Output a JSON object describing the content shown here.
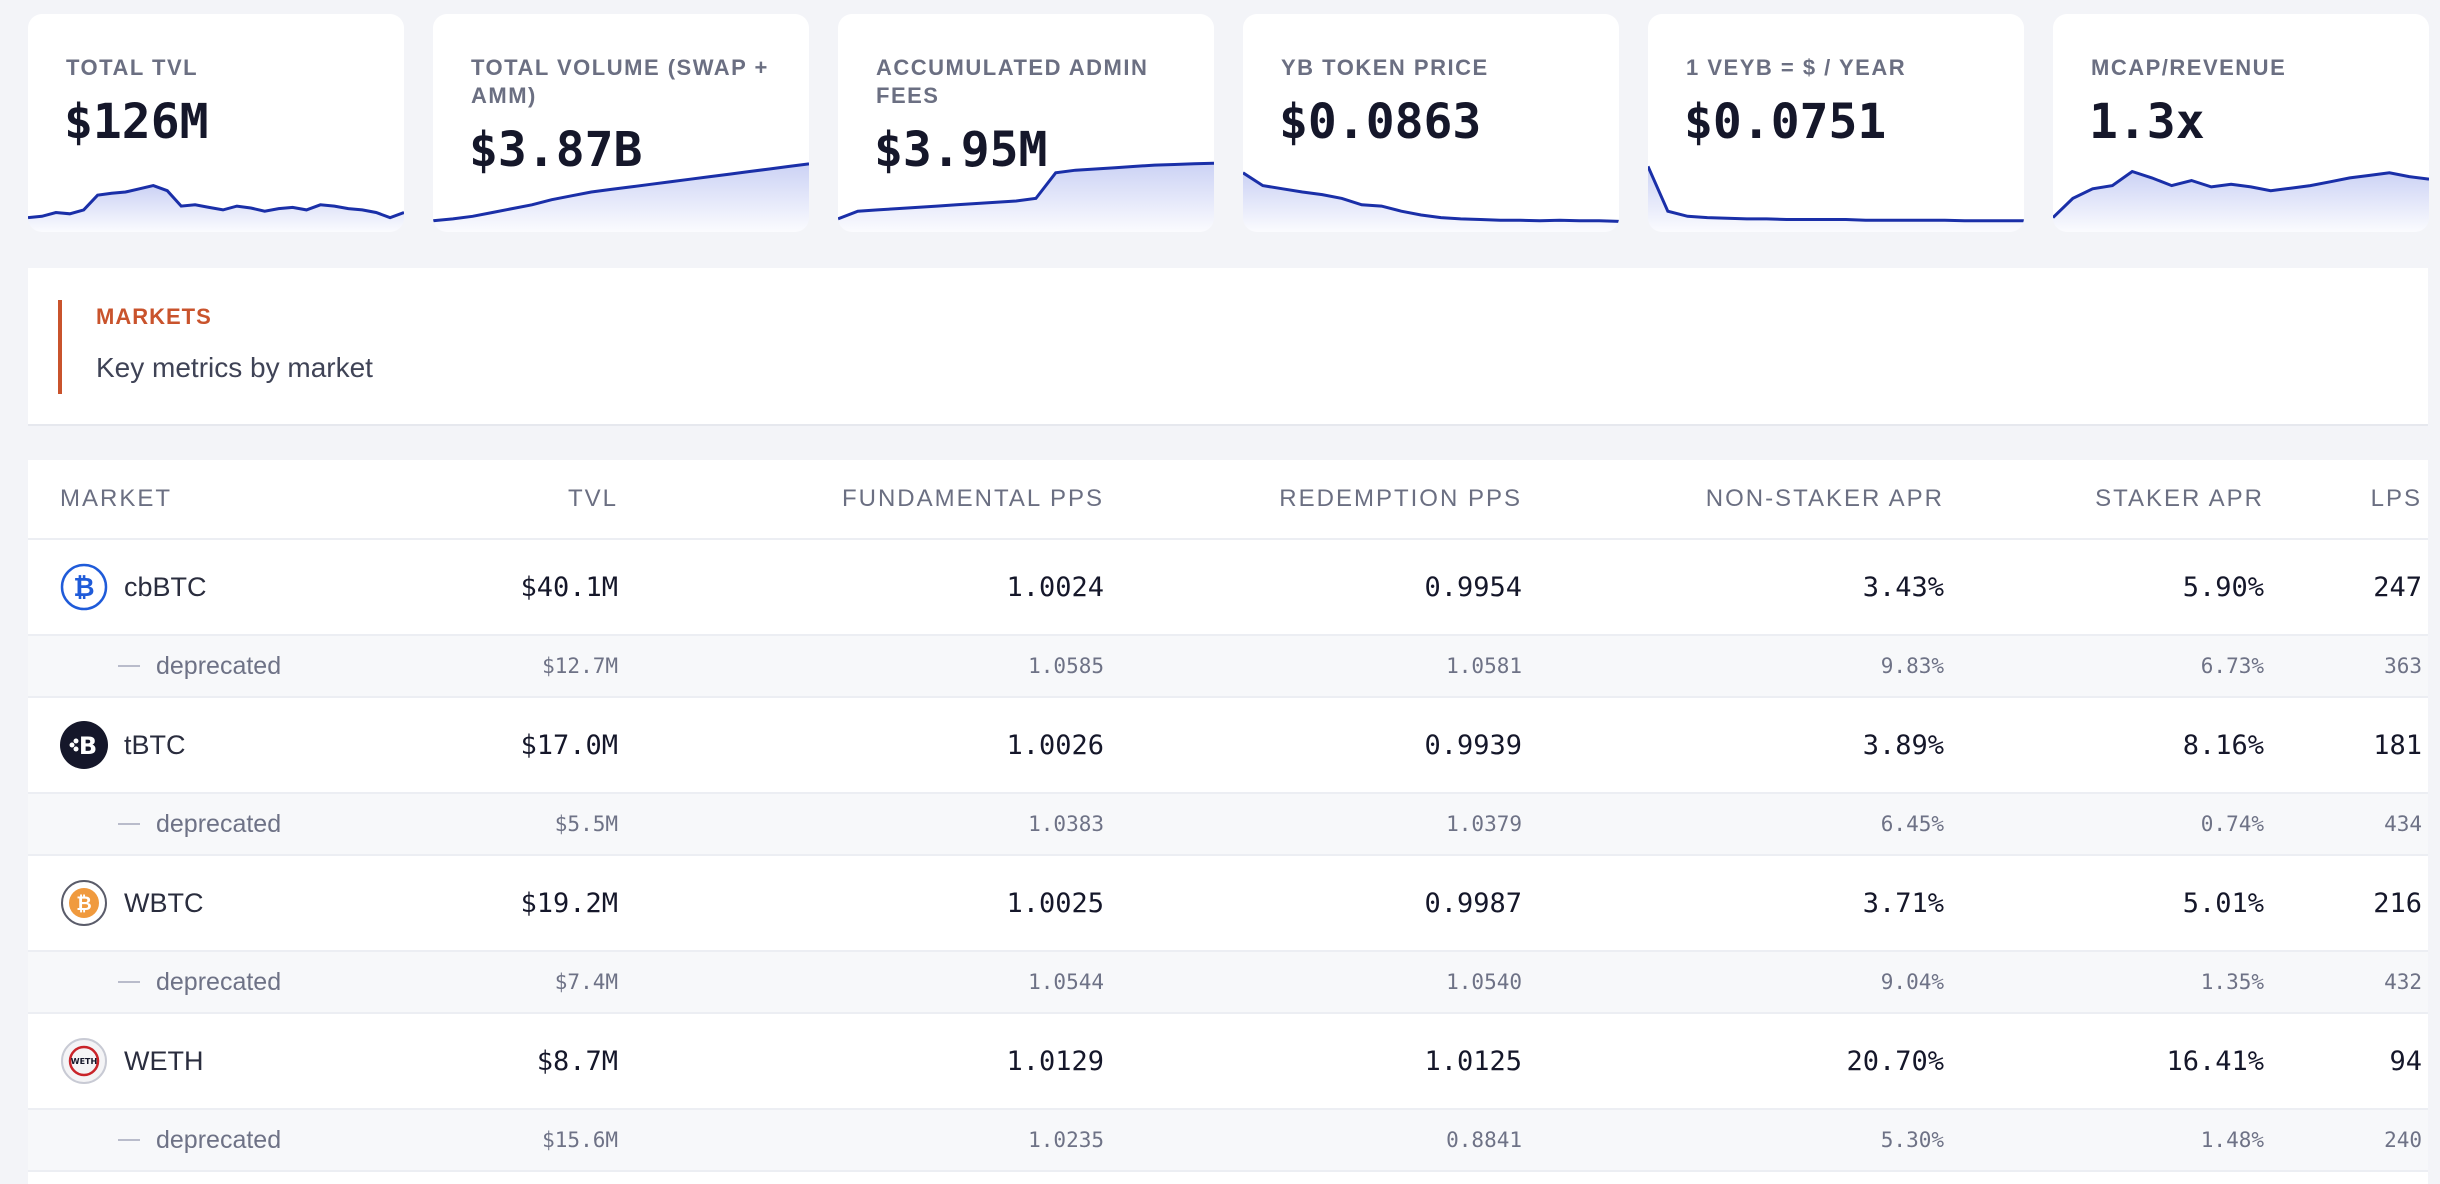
{
  "stat_cards": [
    {
      "label": "TOTAL TVL",
      "value": "$126M",
      "spark": [
        0.1,
        0.12,
        0.18,
        0.16,
        0.22,
        0.45,
        0.48,
        0.5,
        0.55,
        0.6,
        0.52,
        0.28,
        0.3,
        0.26,
        0.22,
        0.28,
        0.25,
        0.2,
        0.24,
        0.26,
        0.22,
        0.3,
        0.28,
        0.24,
        0.22,
        0.18,
        0.1,
        0.18
      ]
    },
    {
      "label": "TOTAL VOLUME (SWAP + AMM)",
      "value": "$3.87B",
      "spark": [
        0.05,
        0.08,
        0.12,
        0.18,
        0.24,
        0.3,
        0.38,
        0.44,
        0.5,
        0.54,
        0.58,
        0.62,
        0.66,
        0.7,
        0.74,
        0.78,
        0.82,
        0.86,
        0.9,
        0.94
      ]
    },
    {
      "label": "ACCUMULATED ADMIN FEES",
      "value": "$3.95M",
      "spark": [
        0.08,
        0.2,
        0.22,
        0.24,
        0.26,
        0.28,
        0.3,
        0.32,
        0.34,
        0.36,
        0.4,
        0.8,
        0.84,
        0.86,
        0.88,
        0.9,
        0.92,
        0.93,
        0.94,
        0.95
      ]
    },
    {
      "label": "YB TOKEN PRICE",
      "value": "$0.0863",
      "spark": [
        0.8,
        0.6,
        0.55,
        0.5,
        0.46,
        0.4,
        0.3,
        0.28,
        0.2,
        0.14,
        0.1,
        0.08,
        0.07,
        0.06,
        0.06,
        0.05,
        0.06,
        0.05,
        0.05,
        0.04
      ]
    },
    {
      "label": "1 VEYB = $ / YEAR",
      "value": "$0.0751",
      "spark": [
        0.9,
        0.2,
        0.12,
        0.1,
        0.09,
        0.08,
        0.08,
        0.07,
        0.07,
        0.07,
        0.07,
        0.06,
        0.06,
        0.06,
        0.06,
        0.06,
        0.05,
        0.05,
        0.05,
        0.05
      ]
    },
    {
      "label": "MCAP/REVENUE",
      "value": "1.3x",
      "spark": [
        0.1,
        0.4,
        0.55,
        0.6,
        0.82,
        0.72,
        0.6,
        0.68,
        0.58,
        0.62,
        0.58,
        0.52,
        0.56,
        0.6,
        0.66,
        0.72,
        0.76,
        0.8,
        0.74,
        0.7
      ]
    }
  ],
  "markets_section": {
    "title": "MARKETS",
    "subtitle": "Key metrics by market"
  },
  "table": {
    "headers": {
      "market": "MARKET",
      "tvl": "TVL",
      "fundamental_pps": "FUNDAMENTAL PPS",
      "redemption_pps": "REDEMPTION PPS",
      "non_staker_apr": "NON-STAKER APR",
      "staker_apr": "STAKER APR",
      "lps": "LPS"
    },
    "rows": [
      {
        "type": "main",
        "icon": "cbbtc-icon",
        "market": "cbBTC",
        "tvl": "$40.1M",
        "fundamental_pps": "1.0024",
        "redemption_pps": "0.9954",
        "non_staker_apr": "3.43%",
        "staker_apr": "5.90%",
        "lps": "247"
      },
      {
        "type": "sub",
        "market": "deprecated",
        "tvl": "$12.7M",
        "fundamental_pps": "1.0585",
        "redemption_pps": "1.0581",
        "non_staker_apr": "9.83%",
        "staker_apr": "6.73%",
        "lps": "363"
      },
      {
        "type": "main",
        "icon": "tbtc-icon",
        "market": "tBTC",
        "tvl": "$17.0M",
        "fundamental_pps": "1.0026",
        "redemption_pps": "0.9939",
        "non_staker_apr": "3.89%",
        "staker_apr": "8.16%",
        "lps": "181"
      },
      {
        "type": "sub",
        "market": "deprecated",
        "tvl": "$5.5M",
        "fundamental_pps": "1.0383",
        "redemption_pps": "1.0379",
        "non_staker_apr": "6.45%",
        "staker_apr": "0.74%",
        "lps": "434"
      },
      {
        "type": "main",
        "icon": "wbtc-icon",
        "market": "WBTC",
        "tvl": "$19.2M",
        "fundamental_pps": "1.0025",
        "redemption_pps": "0.9987",
        "non_staker_apr": "3.71%",
        "staker_apr": "5.01%",
        "lps": "216"
      },
      {
        "type": "sub",
        "market": "deprecated",
        "tvl": "$7.4M",
        "fundamental_pps": "1.0544",
        "redemption_pps": "1.0540",
        "non_staker_apr": "9.04%",
        "staker_apr": "1.35%",
        "lps": "432"
      },
      {
        "type": "main",
        "icon": "weth-icon",
        "market": "WETH",
        "tvl": "$8.7M",
        "fundamental_pps": "1.0129",
        "redemption_pps": "1.0125",
        "non_staker_apr": "20.70%",
        "staker_apr": "16.41%",
        "lps": "94"
      },
      {
        "type": "sub",
        "market": "deprecated",
        "tvl": "$15.6M",
        "fundamental_pps": "1.0235",
        "redemption_pps": "0.8841",
        "non_staker_apr": "5.30%",
        "staker_apr": "1.48%",
        "lps": "240"
      }
    ],
    "icon_text": {
      "weth": "WETH"
    }
  },
  "colors": {
    "accent": "#c9532c",
    "spark_line": "#1a2fa8",
    "cbbtc": "#1f5bd9",
    "tbtc": "#15172a",
    "wbtc": "#f09a3e"
  }
}
